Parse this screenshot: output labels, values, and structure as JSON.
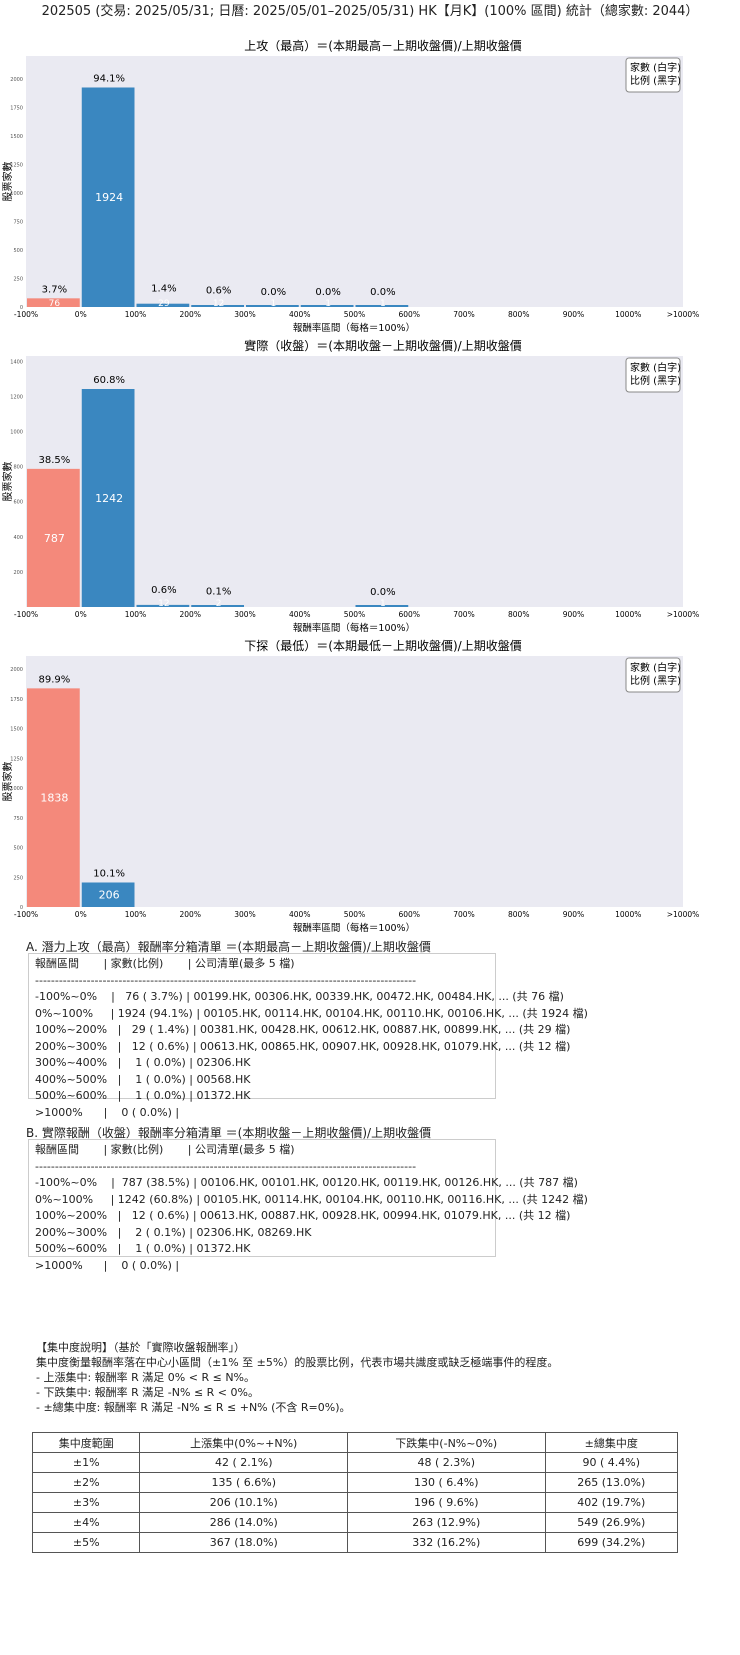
{
  "title": "202505 (交易: 2025/05/31; 日曆: 2025/05/01–2025/05/31) HK【月K】(100% 區間) 統計（總家數: 2044）",
  "colors": {
    "negative": "#f4897b",
    "positive": "#3a87c0",
    "plot_bg": "#eaeaf2"
  },
  "chart_data": [
    {
      "type": "bar",
      "title": "上攻（最高）＝(本期最高－上期收盤價)/上期收盤價",
      "xlabel": "報酬率區間（每格＝100%）",
      "ylabel": "股票家數",
      "legend": [
        "家數 (白字)",
        "比例 (黑字)"
      ],
      "legend_position": "top-right",
      "categories": [
        "-100%~0%",
        "0%~100%",
        "100%~200%",
        "200%~300%",
        "300%~400%",
        "400%~500%",
        "500%~600%",
        "600%~700%",
        "700%~800%",
        "800%~900%",
        "900%~1000%",
        ">1000%"
      ],
      "xticks": [
        "-100%",
        "0%",
        "100%",
        "200%",
        "300%",
        "400%",
        "500%",
        "600%",
        "700%",
        "800%",
        "900%",
        "1000%",
        ">1000%"
      ],
      "values": [
        76,
        1924,
        29,
        12,
        1,
        1,
        1,
        0,
        0,
        0,
        0,
        0
      ],
      "pct_labels": [
        "3.7%",
        "94.1%",
        "1.4%",
        "0.6%",
        "0.0%",
        "0.0%",
        "0.0%",
        "",
        "",
        "",
        "",
        ""
      ],
      "yticks": [
        0,
        250,
        500,
        750,
        1000,
        1250,
        1500,
        1750,
        2000
      ],
      "ylim": [
        0,
        2200
      ]
    },
    {
      "type": "bar",
      "title": "實際（收盤）＝(本期收盤－上期收盤價)/上期收盤價",
      "xlabel": "報酬率區間（每格＝100%）",
      "ylabel": "股票家數",
      "legend": [
        "家數 (白字)",
        "比例 (黑字)"
      ],
      "legend_position": "top-right",
      "categories": [
        "-100%~0%",
        "0%~100%",
        "100%~200%",
        "200%~300%",
        "300%~400%",
        "400%~500%",
        "500%~600%",
        "600%~700%",
        "700%~800%",
        "800%~900%",
        "900%~1000%",
        ">1000%"
      ],
      "xticks": [
        "-100%",
        "0%",
        "100%",
        "200%",
        "300%",
        "400%",
        "500%",
        "600%",
        "700%",
        "800%",
        "900%",
        "1000%",
        ">1000%"
      ],
      "values": [
        787,
        1242,
        12,
        2,
        0,
        0,
        1,
        0,
        0,
        0,
        0,
        0
      ],
      "pct_labels": [
        "38.5%",
        "60.8%",
        "0.6%",
        "0.1%",
        "",
        "",
        "0.0%",
        "",
        "",
        "",
        "",
        ""
      ],
      "yticks": [
        200,
        400,
        600,
        800,
        1000,
        1200,
        1400
      ],
      "ylim": [
        0,
        1430
      ]
    },
    {
      "type": "bar",
      "title": "下探（最低）＝(本期最低－上期收盤價)/上期收盤價",
      "xlabel": "報酬率區間（每格＝100%）",
      "ylabel": "股票家數",
      "legend": [
        "家數 (白字)",
        "比例 (黑字)"
      ],
      "legend_position": "top-right",
      "categories": [
        "-100%~0%",
        "0%~100%",
        "100%~200%",
        "200%~300%",
        "300%~400%",
        "400%~500%",
        "500%~600%",
        "600%~700%",
        "700%~800%",
        "800%~900%",
        "900%~1000%",
        ">1000%"
      ],
      "xticks": [
        "-100%",
        "0%",
        "100%",
        "200%",
        "300%",
        "400%",
        "500%",
        "600%",
        "700%",
        "800%",
        "900%",
        "1000%",
        ">1000%"
      ],
      "values": [
        1838,
        206,
        0,
        0,
        0,
        0,
        0,
        0,
        0,
        0,
        0,
        0
      ],
      "pct_labels": [
        "89.9%",
        "10.1%",
        "",
        "",
        "",
        "",
        "",
        "",
        "",
        "",
        "",
        ""
      ],
      "yticks": [
        0,
        250,
        500,
        750,
        1000,
        1250,
        1500,
        1750,
        2000
      ],
      "ylim": [
        0,
        2110
      ]
    }
  ],
  "section_a": {
    "title": "A. 潛力上攻（最高）報酬率分箱清單 ＝(本期最高－上期收盤價)/上期收盤價",
    "lines": [
      "報酬區間       | 家數(比例)       | 公司清單(最多 5 檔)",
      "------------------------------------------------------------------------------------------------",
      "-100%~0%    |   76 ( 3.7%) | 00199.HK, 00306.HK, 00339.HK, 00472.HK, 00484.HK, ... (共 76 檔)",
      "0%~100%     | 1924 (94.1%) | 00105.HK, 00114.HK, 00104.HK, 00110.HK, 00106.HK, ... (共 1924 檔)",
      "100%~200%   |   29 ( 1.4%) | 00381.HK, 00428.HK, 00612.HK, 00887.HK, 00899.HK, ... (共 29 檔)",
      "200%~300%   |   12 ( 0.6%) | 00613.HK, 00865.HK, 00907.HK, 00928.HK, 01079.HK, ... (共 12 檔)",
      "300%~400%   |    1 ( 0.0%) | 02306.HK",
      "400%~500%   |    1 ( 0.0%) | 00568.HK",
      "500%~600%   |    1 ( 0.0%) | 01372.HK",
      ">1000%      |    0 ( 0.0%) |"
    ]
  },
  "section_b": {
    "title": "B. 實際報酬（收盤）報酬率分箱清單 ＝(本期收盤－上期收盤價)/上期收盤價",
    "lines": [
      "報酬區間       | 家數(比例)       | 公司清單(最多 5 檔)",
      "------------------------------------------------------------------------------------------------",
      "-100%~0%    |  787 (38.5%) | 00106.HK, 00101.HK, 00120.HK, 00119.HK, 00126.HK, ... (共 787 檔)",
      "0%~100%     | 1242 (60.8%) | 00105.HK, 00114.HK, 00104.HK, 00110.HK, 00116.HK, ... (共 1242 檔)",
      "100%~200%   |   12 ( 0.6%) | 00613.HK, 00887.HK, 00928.HK, 00994.HK, 01079.HK, ... (共 12 檔)",
      "200%~300%   |    2 ( 0.1%) | 02306.HK, 08269.HK",
      "500%~600%   |    1 ( 0.0%) | 01372.HK",
      ">1000%      |    0 ( 0.0%) |"
    ]
  },
  "concentration": {
    "lines": [
      "【集中度說明】（基於「實際收盤報酬率」）",
      "集中度衡量報酬率落在中心小區間（±1% 至 ±5%）的股票比例，代表市場共識度或缺乏極端事件的程度。",
      "- 上漲集中: 報酬率 R 滿足 0% < R ≤ N%。",
      "- 下跌集中: 報酬率 R 滿足 -N% ≤ R < 0%。",
      "- ±總集中度: 報酬率 R 滿足 -N% ≤ R ≤ +N% (不含 R=0%)。"
    ],
    "table": {
      "headers": [
        "集中度範圍",
        "上漲集中(0%~+N%)",
        "下跌集中(-N%~0%)",
        "±總集中度"
      ],
      "rows": [
        [
          "±1%",
          "42 ( 2.1%)",
          "48 ( 2.3%)",
          "90 ( 4.4%)"
        ],
        [
          "±2%",
          "135 ( 6.6%)",
          "130 ( 6.4%)",
          "265 (13.0%)"
        ],
        [
          "±3%",
          "206 (10.1%)",
          "196 ( 9.6%)",
          "402 (19.7%)"
        ],
        [
          "±4%",
          "286 (14.0%)",
          "263 (12.9%)",
          "549 (26.9%)"
        ],
        [
          "±5%",
          "367 (18.0%)",
          "332 (16.2%)",
          "699 (34.2%)"
        ]
      ]
    }
  }
}
